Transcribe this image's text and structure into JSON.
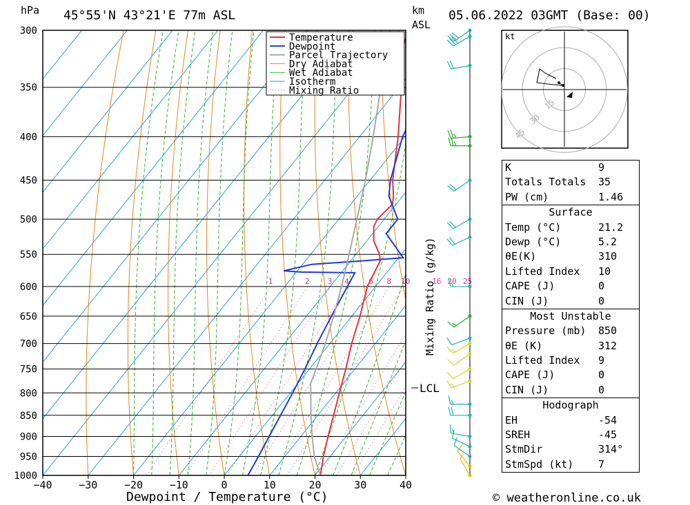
{
  "header": {
    "location": "45°55'N 43°21'E 77m ASL",
    "date": "05.06.2022 03GMT (Base: 00)",
    "hpa_label": "hPa",
    "km_label": "km",
    "asl_label": "ASL"
  },
  "footer": {
    "credit": "© weatheronline.co.uk"
  },
  "chart_data": {
    "type": "line",
    "subtype": "skew-T log-p",
    "xlabel": "Dewpoint / Temperature (°C)",
    "ylabel_right": "Mixing Ratio (g/kg)",
    "xlim": [
      -40,
      40
    ],
    "ylim": [
      1000,
      300
    ],
    "x_ticks": [
      -40,
      -30,
      -20,
      -10,
      0,
      10,
      20,
      30,
      40
    ],
    "pressure_levels": [
      300,
      350,
      400,
      450,
      500,
      550,
      600,
      650,
      700,
      750,
      800,
      850,
      900,
      950,
      1000
    ],
    "mixing_ratio_labels": [
      "1",
      "2",
      "3",
      "4",
      "6",
      "8",
      "10",
      "16",
      "20",
      "25"
    ],
    "mixing_ratio_values": [
      1,
      2,
      3,
      4,
      6,
      8,
      10,
      16,
      20,
      25
    ],
    "lcl_label": "LCL",
    "lcl_pressure": 780,
    "legend": [
      "Temperature",
      "Dewpoint",
      "Parcel Trajectory",
      "Dry Adiabat",
      "Wet Adiabat",
      "Isotherm",
      "Mixing Ratio"
    ],
    "colors": {
      "temperature": "#e8313a",
      "dewpoint": "#1f3ad8",
      "parcel": "#a8a8a8",
      "dry_adiabat": "#e8861e",
      "wet_adiabat": "#2fb52f",
      "isotherm": "#2b9fd8",
      "mixing_ratio": "#cc3399"
    },
    "series": [
      {
        "name": "Temperature",
        "points": [
          [
            1000,
            21.2
          ],
          [
            950,
            18.5
          ],
          [
            900,
            16.0
          ],
          [
            850,
            13.5
          ],
          [
            800,
            10.8
          ],
          [
            750,
            8.0
          ],
          [
            700,
            4.8
          ],
          [
            650,
            1.8
          ],
          [
            600,
            -1.8
          ],
          [
            560,
            -3.5
          ],
          [
            550,
            -4.8
          ],
          [
            530,
            -8.5
          ],
          [
            510,
            -11.0
          ],
          [
            500,
            -11.5
          ],
          [
            480,
            -10.8
          ],
          [
            470,
            -12.0
          ],
          [
            450,
            -15.0
          ],
          [
            400,
            -21.5
          ],
          [
            350,
            -29.5
          ],
          [
            320,
            -35.5
          ],
          [
            300,
            -38.0
          ]
        ]
      },
      {
        "name": "Dewpoint",
        "points": [
          [
            1000,
            5.2
          ],
          [
            950,
            4.2
          ],
          [
            900,
            3.0
          ],
          [
            850,
            1.8
          ],
          [
            800,
            0.5
          ],
          [
            750,
            -1.0
          ],
          [
            700,
            -2.8
          ],
          [
            650,
            -4.5
          ],
          [
            600,
            -6.2
          ],
          [
            578,
            -7.0
          ],
          [
            577,
            -19.0
          ],
          [
            575,
            -23.0
          ],
          [
            565,
            -18.0
          ],
          [
            560,
            -8.0
          ],
          [
            555,
            1.0
          ],
          [
            520,
            -7.0
          ],
          [
            500,
            -7.0
          ],
          [
            470,
            -13.0
          ],
          [
            450,
            -15.5
          ],
          [
            400,
            -20.5
          ],
          [
            350,
            -24.0
          ],
          [
            320,
            -27.0
          ],
          [
            300,
            -30.0
          ]
        ]
      },
      {
        "name": "Parcel Trajectory",
        "points": [
          [
            1000,
            21.2
          ],
          [
            950,
            16.5
          ],
          [
            900,
            12.5
          ],
          [
            850,
            8.5
          ],
          [
            800,
            4.5
          ],
          [
            780,
            2.8
          ],
          [
            750,
            1.5
          ],
          [
            700,
            -1.0
          ],
          [
            650,
            -4.0
          ],
          [
            600,
            -7.5
          ],
          [
            550,
            -11.5
          ],
          [
            500,
            -16.0
          ],
          [
            450,
            -21.0
          ],
          [
            400,
            -27.0
          ],
          [
            350,
            -34.0
          ],
          [
            300,
            -42.0
          ]
        ]
      }
    ],
    "winds": [
      {
        "pressure": 1000,
        "dir": 330,
        "spd": 7
      },
      {
        "pressure": 975,
        "dir": 320,
        "spd": 8
      },
      {
        "pressure": 950,
        "dir": 305,
        "spd": 10
      },
      {
        "pressure": 925,
        "dir": 295,
        "spd": 10
      },
      {
        "pressure": 900,
        "dir": 280,
        "spd": 15
      },
      {
        "pressure": 850,
        "dir": 270,
        "spd": 20
      },
      {
        "pressure": 825,
        "dir": 270,
        "spd": 15
      },
      {
        "pressure": 775,
        "dir": 250,
        "spd": 15
      },
      {
        "pressure": 750,
        "dir": 240,
        "spd": 10
      },
      {
        "pressure": 720,
        "dir": 235,
        "spd": 10
      },
      {
        "pressure": 700,
        "dir": 240,
        "spd": 15
      },
      {
        "pressure": 690,
        "dir": 250,
        "spd": 10
      },
      {
        "pressure": 650,
        "dir": 235,
        "spd": 15
      },
      {
        "pressure": 600,
        "dir": 270,
        "spd": 15
      },
      {
        "pressure": 525,
        "dir": 245,
        "spd": 20
      },
      {
        "pressure": 500,
        "dir": 240,
        "spd": 20
      },
      {
        "pressure": 450,
        "dir": 235,
        "spd": 20
      },
      {
        "pressure": 410,
        "dir": 270,
        "spd": 25
      },
      {
        "pressure": 400,
        "dir": 265,
        "spd": 25
      },
      {
        "pressure": 330,
        "dir": 260,
        "spd": 20
      },
      {
        "pressure": 305,
        "dir": 240,
        "spd": 30
      },
      {
        "pressure": 300,
        "dir": 235,
        "spd": 30
      }
    ],
    "hodograph": {
      "unit_label": "kt",
      "ring_labels": [
        "15",
        "30",
        "45"
      ],
      "ring_values": [
        15,
        30,
        45
      ],
      "trace": [
        [
          -4,
          5
        ],
        [
          -1,
          3
        ],
        [
          -12,
          4
        ],
        [
          -20,
          5
        ],
        [
          -18,
          15
        ],
        [
          -14,
          12
        ],
        [
          -10,
          10
        ],
        [
          -6,
          8
        ]
      ],
      "storm_motion": [
        4,
        -3
      ]
    }
  },
  "indices": {
    "top": [
      {
        "label": "K",
        "value": "9"
      },
      {
        "label": "Totals Totals",
        "value": "35"
      },
      {
        "label": "PW (cm)",
        "value": "1.46"
      }
    ],
    "surface": {
      "title": "Surface",
      "rows": [
        {
          "label": "Temp (°C)",
          "value": "21.2"
        },
        {
          "label": "Dewp (°C)",
          "value": "5.2"
        },
        {
          "label": "θE(K)",
          "value": "310"
        },
        {
          "label": "Lifted Index",
          "value": "10"
        },
        {
          "label": "CAPE (J)",
          "value": "0"
        },
        {
          "label": "CIN (J)",
          "value": "0"
        }
      ]
    },
    "most_unstable": {
      "title": "Most Unstable",
      "rows": [
        {
          "label": "Pressure (mb)",
          "value": "850"
        },
        {
          "label": "θE (K)",
          "value": "312"
        },
        {
          "label": "Lifted Index",
          "value": "9"
        },
        {
          "label": "CAPE (J)",
          "value": "0"
        },
        {
          "label": "CIN (J)",
          "value": "0"
        }
      ]
    },
    "hodograph": {
      "title": "Hodograph",
      "rows": [
        {
          "label": "EH",
          "value": "-54"
        },
        {
          "label": "SREH",
          "value": "-45"
        },
        {
          "label": "StmDir",
          "value": "314°"
        },
        {
          "label": "StmSpd (kt)",
          "value": "7"
        }
      ]
    }
  }
}
